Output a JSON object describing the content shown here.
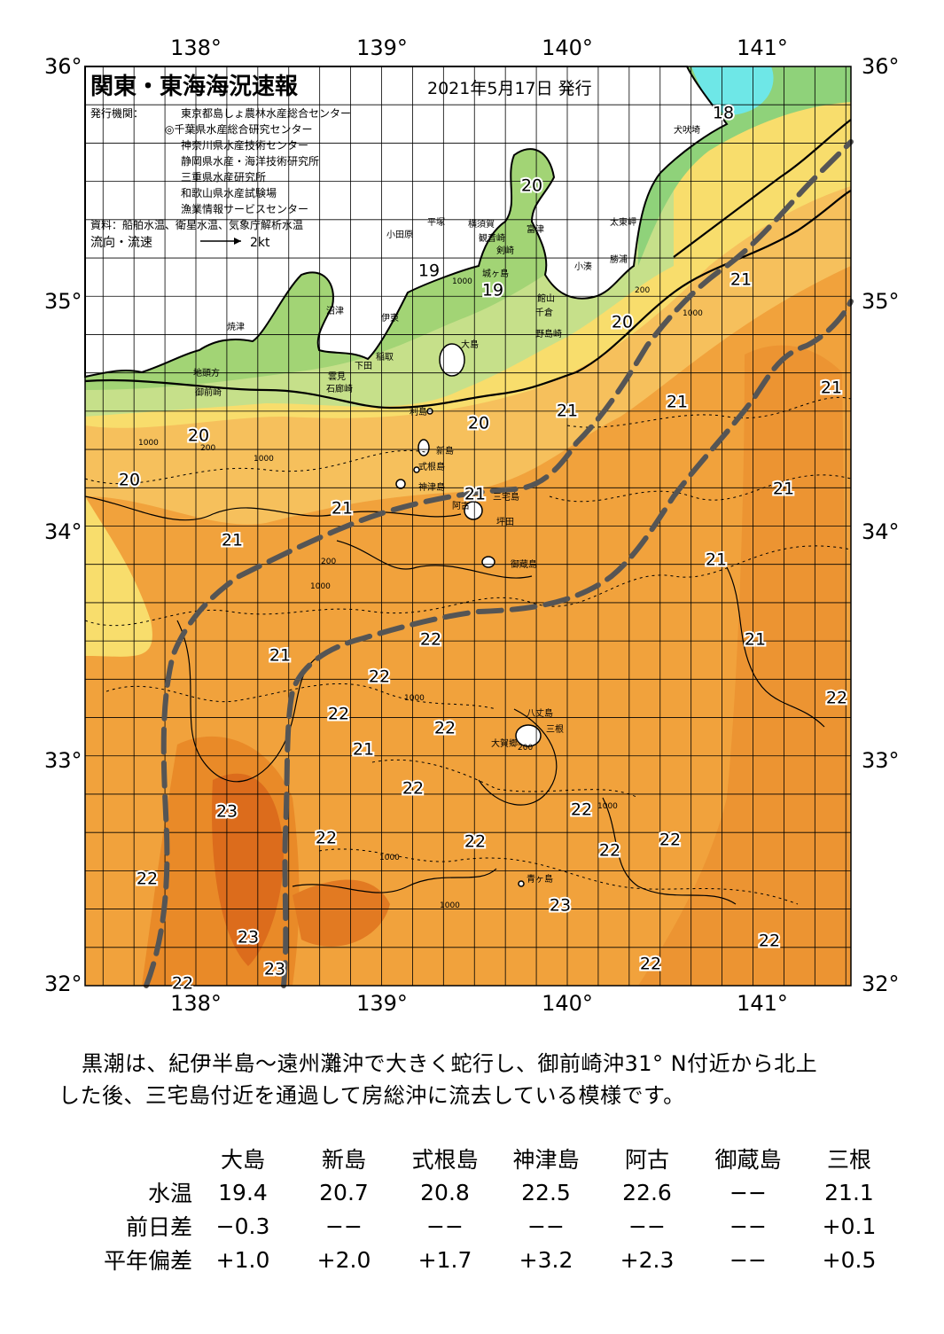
{
  "map": {
    "title": "関東・東海海況速報",
    "issue_date": "2021年5月17日 発行",
    "issuer_label": "発行機関：",
    "issuers": [
      "東京都島しょ農林水産総合センター",
      "◎千葉県水産総合研究センター",
      "神奈川県水産技術センター",
      "静岡県水産・海洋技術研究所",
      "三重県水産研究所",
      "和歌山県水産試験場",
      "漁業情報サービスセンター"
    ],
    "source": "資料：船舶水温、衛星水温、気象庁解析水温",
    "flow_label": "流向・流速",
    "flow_scale": "2kt",
    "lon_labels": [
      "138°",
      "139°",
      "140°",
      "141°"
    ],
    "lat_labels": [
      "36°",
      "35°",
      "34°",
      "33°",
      "32°"
    ],
    "places": [
      {
        "name": "犬吠埼"
      },
      {
        "name": "太東岬"
      },
      {
        "name": "勝浦"
      },
      {
        "name": "小湊"
      },
      {
        "name": "富津"
      },
      {
        "name": "館山"
      },
      {
        "name": "千倉"
      },
      {
        "name": "野島崎"
      },
      {
        "name": "横須賀"
      },
      {
        "name": "観音崎"
      },
      {
        "name": "剣崎"
      },
      {
        "name": "城ヶ島"
      },
      {
        "name": "平塚"
      },
      {
        "name": "小田原"
      },
      {
        "name": "沼津"
      },
      {
        "name": "伊東"
      },
      {
        "name": "大島"
      },
      {
        "name": "稲取"
      },
      {
        "name": "下田"
      },
      {
        "name": "雲見"
      },
      {
        "name": "石廊崎"
      },
      {
        "name": "焼津"
      },
      {
        "name": "地頭方"
      },
      {
        "name": "御前崎"
      },
      {
        "name": "利島"
      },
      {
        "name": "新島"
      },
      {
        "name": "式根島"
      },
      {
        "name": "神津島"
      },
      {
        "name": "三宅島"
      },
      {
        "name": "阿古"
      },
      {
        "name": "坪田"
      },
      {
        "name": "御蔵島"
      },
      {
        "name": "八丈島"
      },
      {
        "name": "三根"
      },
      {
        "name": "大賀郷"
      },
      {
        "name": "青ヶ島"
      }
    ],
    "temp_labels": [
      {
        "value": "18"
      },
      {
        "value": "20"
      },
      {
        "value": "19"
      },
      {
        "value": "19"
      },
      {
        "value": "21"
      },
      {
        "value": "20"
      },
      {
        "value": "21"
      },
      {
        "value": "21"
      },
      {
        "value": "21"
      },
      {
        "value": "20"
      },
      {
        "value": "20"
      },
      {
        "value": "20"
      },
      {
        "value": "21"
      },
      {
        "value": "21"
      },
      {
        "value": "21"
      },
      {
        "value": "21"
      },
      {
        "value": "21"
      },
      {
        "value": "21"
      },
      {
        "value": "22"
      },
      {
        "value": "21"
      },
      {
        "value": "22"
      },
      {
        "value": "22"
      },
      {
        "value": "22"
      },
      {
        "value": "22"
      },
      {
        "value": "21"
      },
      {
        "value": "22"
      },
      {
        "value": "23"
      },
      {
        "value": "22"
      },
      {
        "value": "22"
      },
      {
        "value": "22"
      },
      {
        "value": "22"
      },
      {
        "value": "22"
      },
      {
        "value": "22"
      },
      {
        "value": "23"
      },
      {
        "value": "23"
      },
      {
        "value": "22"
      },
      {
        "value": "22"
      },
      {
        "value": "23"
      },
      {
        "value": "22"
      }
    ],
    "depth_labels": [
      {
        "value": "1000"
      },
      {
        "value": "200"
      },
      {
        "value": "1000"
      },
      {
        "value": "1000"
      },
      {
        "value": "200"
      },
      {
        "value": "1000"
      },
      {
        "value": "200"
      },
      {
        "value": "1000"
      },
      {
        "value": "1000"
      },
      {
        "value": "1000"
      },
      {
        "value": "1000"
      },
      {
        "value": "200"
      },
      {
        "value": "1000"
      }
    ]
  },
  "summary": {
    "line1": "黒潮は、紀伊半島～遠州灘沖で大きく蛇行し、御前崎沖31°  N付近から北上",
    "line2": "した後、三宅島付近を通過して房総沖に流去している模様です。"
  },
  "table": {
    "stations": [
      "大島",
      "新島",
      "式根島",
      "神津島",
      "阿古",
      "御蔵島",
      "三根"
    ],
    "rows": [
      {
        "label": "水温",
        "values": [
          "19.4",
          "20.7",
          "20.8",
          "22.5",
          "22.6",
          "−−",
          "21.1"
        ]
      },
      {
        "label": "前日差",
        "values": [
          "−0.3",
          "−−",
          "−−",
          "−−",
          "−−",
          "−−",
          "+0.1"
        ]
      },
      {
        "label": "平年偏差",
        "values": [
          "+1.0",
          "+2.0",
          "+1.7",
          "+3.2",
          "+2.3",
          "−−",
          "+0.5"
        ]
      }
    ]
  }
}
